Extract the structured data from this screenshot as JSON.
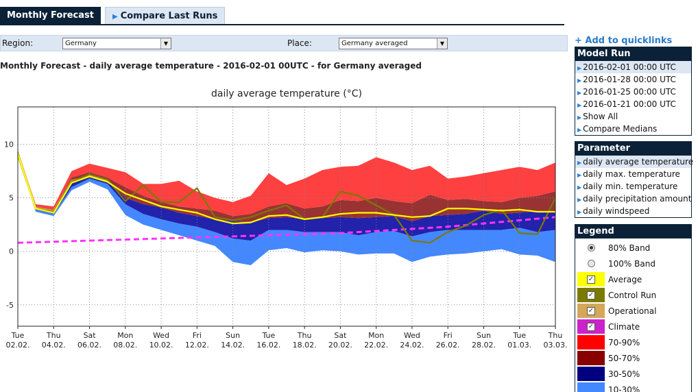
{
  "tabs": [
    {
      "label": "Monthly Forecast"
    },
    {
      "label": "Compare Last Runs"
    }
  ],
  "selectors": {
    "region_label": "Region:",
    "region_value": "Germany",
    "place_label": "Place:",
    "place_value": "Germany averaged"
  },
  "page_title": "Monthly Forecast - daily average temperature - 2016-02-01 00UTC - for Germany averaged",
  "quicklinks": "+ Add to quicklinks",
  "model_run": {
    "title": "Model Run",
    "items": [
      "2016-02-01 00:00 UTC",
      "2016-01-28 00:00 UTC",
      "2016-01-25 00:00 UTC",
      "2016-01-21 00:00 UTC",
      "Show All",
      "Compare Medians"
    ]
  },
  "parameter": {
    "title": "Parameter",
    "items": [
      "daily average temperature",
      "daily max. temperature",
      "daily min. temperature",
      "daily precipitation amount",
      "daily windspeed"
    ]
  },
  "legend": {
    "title": "Legend",
    "items": [
      {
        "label": "80% Band",
        "kind": "radio",
        "checked": true
      },
      {
        "label": "100% Band",
        "kind": "radio",
        "checked": false
      },
      {
        "label": "Average",
        "kind": "check",
        "color": "#ffff00"
      },
      {
        "label": "Control Run",
        "kind": "check",
        "color": "#7a7a00"
      },
      {
        "label": "Operational",
        "kind": "check",
        "color": "#d4a85a"
      },
      {
        "label": "Climate",
        "kind": "check",
        "color": "#cc22cc"
      },
      {
        "label": "70-90%",
        "kind": "color",
        "color": "#ff0000"
      },
      {
        "label": "50-70%",
        "kind": "color",
        "color": "#880000"
      },
      {
        "label": "30-50%",
        "kind": "color",
        "color": "#000080"
      },
      {
        "label": "10-30%",
        "kind": "color",
        "color": "#4488ff"
      }
    ]
  },
  "chart_data": {
    "type": "area",
    "title": "daily average temperature (°C)",
    "ylim": [
      -7,
      13.5
    ],
    "yticks": [
      -5,
      0,
      5,
      10
    ],
    "grid": true,
    "x_labels": [
      [
        "Tue",
        "02.02."
      ],
      [
        "Thu",
        "04.02."
      ],
      [
        "Sat",
        "06.02."
      ],
      [
        "Mon",
        "08.02."
      ],
      [
        "Wed",
        "10.02."
      ],
      [
        "Fri",
        "12.02."
      ],
      [
        "Sun",
        "14.02."
      ],
      [
        "Tue",
        "16.02."
      ],
      [
        "Thu",
        "18.02."
      ],
      [
        "Sat",
        "20.02."
      ],
      [
        "Mon",
        "22.02."
      ],
      [
        "Wed",
        "24.02."
      ],
      [
        "Fri",
        "26.02."
      ],
      [
        "Sun",
        "28.02."
      ],
      [
        "Tue",
        "01.03."
      ],
      [
        "Thu",
        "03.03."
      ]
    ],
    "x_days": [
      "02.02.",
      "03.02.",
      "04.02.",
      "05.02.",
      "06.02.",
      "07.02.",
      "08.02.",
      "09.02.",
      "10.02.",
      "11.02.",
      "12.02.",
      "13.02.",
      "14.02.",
      "15.02.",
      "16.02.",
      "17.02.",
      "18.02.",
      "19.02.",
      "20.02.",
      "21.02.",
      "22.02.",
      "23.02.",
      "24.02.",
      "25.02.",
      "26.02.",
      "27.02.",
      "28.02.",
      "29.02.",
      "01.03.",
      "02.03.",
      "03.03."
    ],
    "bands": {
      "p10": [
        9.0,
        3.7,
        3.3,
        5.7,
        6.5,
        5.8,
        3.4,
        2.5,
        2.0,
        1.5,
        1.0,
        0.5,
        -1.0,
        -1.3,
        0.1,
        0.3,
        -0.1,
        0.1,
        0.0,
        -0.3,
        -0.2,
        -0.2,
        -1.0,
        -0.5,
        -0.3,
        -0.2,
        0.0,
        0.2,
        -0.3,
        -0.4,
        -1.0
      ],
      "p30": [
        9.1,
        3.9,
        3.5,
        6.0,
        6.8,
        6.3,
        4.4,
        3.5,
        3.0,
        2.6,
        2.3,
        1.8,
        1.2,
        1.0,
        2.0,
        2.0,
        1.8,
        1.8,
        1.8,
        1.5,
        1.8,
        1.9,
        1.4,
        1.8,
        2.0,
        2.0,
        2.0,
        2.0,
        2.2,
        1.8,
        2.0
      ],
      "p50": [
        9.2,
        4.1,
        3.7,
        6.6,
        7.0,
        6.6,
        5.0,
        4.4,
        4.1,
        3.6,
        3.3,
        3.0,
        2.8,
        2.7,
        3.1,
        3.2,
        3.0,
        3.1,
        3.2,
        3.1,
        3.2,
        3.3,
        2.8,
        3.3,
        3.4,
        3.5,
        3.8,
        3.5,
        3.6,
        3.8,
        3.6
      ],
      "p70": [
        9.3,
        4.2,
        3.9,
        6.9,
        7.4,
        6.9,
        6.0,
        5.2,
        4.6,
        4.2,
        4.0,
        3.8,
        3.3,
        3.5,
        4.2,
        4.5,
        4.0,
        4.2,
        4.8,
        4.7,
        5.0,
        4.7,
        4.5,
        5.3,
        4.8,
        4.9,
        4.7,
        4.6,
        5.0,
        5.2,
        5.6
      ],
      "p90": [
        9.4,
        4.4,
        4.2,
        7.5,
        8.2,
        7.8,
        7.4,
        6.3,
        6.3,
        6.6,
        5.6,
        5.0,
        4.6,
        5.2,
        7.3,
        6.2,
        6.8,
        7.6,
        7.9,
        8.0,
        8.8,
        8.3,
        7.6,
        8.0,
        6.8,
        7.0,
        7.3,
        7.6,
        7.9,
        7.6,
        8.3
      ]
    },
    "series": [
      {
        "name": "Average",
        "color": "#ffff00",
        "values": [
          9.1,
          4.0,
          3.6,
          6.4,
          7.0,
          6.5,
          5.4,
          4.8,
          4.2,
          3.9,
          3.6,
          3.0,
          2.6,
          2.7,
          3.3,
          3.4,
          3.0,
          3.2,
          3.5,
          3.6,
          3.6,
          3.4,
          3.2,
          3.3,
          4.0,
          4.0,
          3.9,
          3.8,
          3.9,
          3.7,
          3.7
        ]
      },
      {
        "name": "Control Run",
        "color": "#7a7a00",
        "values": [
          9.0,
          4.0,
          3.7,
          6.5,
          7.2,
          6.7,
          4.7,
          6.2,
          4.6,
          4.6,
          5.9,
          3.2,
          2.9,
          3.2,
          3.8,
          4.3,
          3.0,
          3.2,
          5.6,
          5.2,
          4.3,
          3.4,
          1.0,
          0.8,
          1.8,
          2.4,
          3.4,
          3.9,
          1.7,
          1.6,
          5.0
        ]
      },
      {
        "name": "Operational",
        "color": "#d4a85a",
        "values": [
          9.3,
          4.1,
          3.8,
          6.6,
          7.1,
          6.6
        ]
      },
      {
        "name": "Climate",
        "color": "#ff33ff",
        "values": [
          0.8,
          0.85,
          0.9,
          0.95,
          1.0,
          1.05,
          1.1,
          1.15,
          1.2,
          1.25,
          1.3,
          1.35,
          1.4,
          1.45,
          1.5,
          1.55,
          1.6,
          1.65,
          1.7,
          1.8,
          1.9,
          2.0,
          2.1,
          2.2,
          2.3,
          2.45,
          2.6,
          2.75,
          2.9,
          3.05,
          3.2
        ]
      }
    ]
  }
}
